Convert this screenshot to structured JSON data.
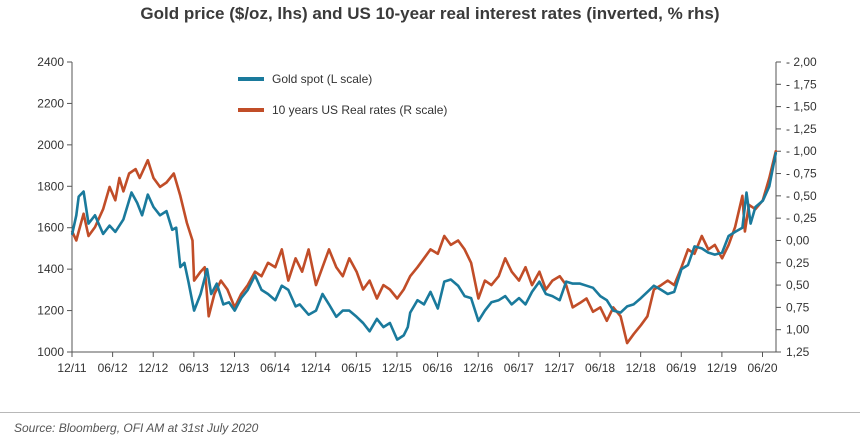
{
  "chart_data": {
    "type": "line",
    "title": "Gold price ($/oz, lhs) and US 10-year real interest rates (inverted, % rhs)",
    "source": "Source: Bloomberg, OFI AM at 31st July 2020",
    "xlabel": "",
    "ylabel_left": "",
    "ylabel_right": "",
    "x_tick_labels": [
      "12/11",
      "06/12",
      "12/12",
      "06/13",
      "12/13",
      "06/14",
      "12/14",
      "06/15",
      "12/15",
      "06/16",
      "12/16",
      "06/17",
      "12/17",
      "06/18",
      "12/18",
      "06/19",
      "12/19",
      "06/20"
    ],
    "x_range": [
      2011.917,
      2020.583
    ],
    "left_axis": {
      "ylim": [
        1000,
        2400
      ],
      "ticks": [
        "1000",
        "1200",
        "1400",
        "1600",
        "1800",
        "2000",
        "2200",
        "2400"
      ]
    },
    "right_axis": {
      "inverted": true,
      "ylim": [
        1.25,
        -2.0
      ],
      "ticks": [
        "- 2,00",
        "- 1,75",
        "- 1,50",
        "- 1,25",
        "- 1,00",
        "- 0,75",
        "- 0,50",
        "- 0,25",
        "0,00",
        "0,25",
        "0,50",
        "0,75",
        "1,00",
        "1,25"
      ]
    },
    "legend_position": "top-center",
    "grid": false,
    "series": [
      {
        "name": "Gold spot (L scale)",
        "axis": "left",
        "color": "#1a7a9c",
        "points": [
          [
            2011.92,
            1570
          ],
          [
            2011.97,
            1660
          ],
          [
            2012.0,
            1750
          ],
          [
            2012.06,
            1775
          ],
          [
            2012.12,
            1620
          ],
          [
            2012.2,
            1660
          ],
          [
            2012.3,
            1570
          ],
          [
            2012.38,
            1610
          ],
          [
            2012.45,
            1580
          ],
          [
            2012.55,
            1640
          ],
          [
            2012.65,
            1770
          ],
          [
            2012.72,
            1720
          ],
          [
            2012.78,
            1660
          ],
          [
            2012.85,
            1760
          ],
          [
            2012.92,
            1700
          ],
          [
            2013.0,
            1660
          ],
          [
            2013.08,
            1680
          ],
          [
            2013.15,
            1590
          ],
          [
            2013.2,
            1600
          ],
          [
            2013.25,
            1410
          ],
          [
            2013.3,
            1430
          ],
          [
            2013.35,
            1340
          ],
          [
            2013.42,
            1200
          ],
          [
            2013.5,
            1280
          ],
          [
            2013.58,
            1400
          ],
          [
            2013.63,
            1280
          ],
          [
            2013.7,
            1330
          ],
          [
            2013.78,
            1230
          ],
          [
            2013.85,
            1240
          ],
          [
            2013.92,
            1200
          ],
          [
            2014.0,
            1260
          ],
          [
            2014.08,
            1300
          ],
          [
            2014.17,
            1370
          ],
          [
            2014.25,
            1300
          ],
          [
            2014.33,
            1280
          ],
          [
            2014.42,
            1250
          ],
          [
            2014.5,
            1320
          ],
          [
            2014.58,
            1300
          ],
          [
            2014.67,
            1220
          ],
          [
            2014.72,
            1230
          ],
          [
            2014.83,
            1180
          ],
          [
            2014.92,
            1200
          ],
          [
            2015.0,
            1280
          ],
          [
            2015.08,
            1230
          ],
          [
            2015.17,
            1170
          ],
          [
            2015.25,
            1200
          ],
          [
            2015.33,
            1200
          ],
          [
            2015.42,
            1170
          ],
          [
            2015.5,
            1140
          ],
          [
            2015.58,
            1100
          ],
          [
            2015.67,
            1160
          ],
          [
            2015.75,
            1120
          ],
          [
            2015.83,
            1140
          ],
          [
            2015.92,
            1060
          ],
          [
            2016.0,
            1080
          ],
          [
            2016.05,
            1120
          ],
          [
            2016.08,
            1190
          ],
          [
            2016.17,
            1250
          ],
          [
            2016.25,
            1230
          ],
          [
            2016.33,
            1290
          ],
          [
            2016.42,
            1210
          ],
          [
            2016.5,
            1340
          ],
          [
            2016.58,
            1350
          ],
          [
            2016.67,
            1320
          ],
          [
            2016.75,
            1270
          ],
          [
            2016.83,
            1260
          ],
          [
            2016.92,
            1150
          ],
          [
            2017.0,
            1200
          ],
          [
            2017.08,
            1240
          ],
          [
            2017.17,
            1250
          ],
          [
            2017.25,
            1270
          ],
          [
            2017.33,
            1230
          ],
          [
            2017.42,
            1260
          ],
          [
            2017.5,
            1230
          ],
          [
            2017.58,
            1290
          ],
          [
            2017.67,
            1340
          ],
          [
            2017.75,
            1280
          ],
          [
            2017.83,
            1270
          ],
          [
            2017.92,
            1250
          ],
          [
            2018.0,
            1340
          ],
          [
            2018.08,
            1330
          ],
          [
            2018.17,
            1330
          ],
          [
            2018.25,
            1320
          ],
          [
            2018.33,
            1310
          ],
          [
            2018.42,
            1270
          ],
          [
            2018.5,
            1250
          ],
          [
            2018.58,
            1200
          ],
          [
            2018.67,
            1190
          ],
          [
            2018.75,
            1220
          ],
          [
            2018.83,
            1230
          ],
          [
            2018.92,
            1260
          ],
          [
            2019.0,
            1290
          ],
          [
            2019.08,
            1320
          ],
          [
            2019.17,
            1300
          ],
          [
            2019.25,
            1280
          ],
          [
            2019.33,
            1290
          ],
          [
            2019.42,
            1400
          ],
          [
            2019.5,
            1420
          ],
          [
            2019.58,
            1510
          ],
          [
            2019.67,
            1500
          ],
          [
            2019.75,
            1480
          ],
          [
            2019.83,
            1470
          ],
          [
            2019.92,
            1480
          ],
          [
            2020.0,
            1560
          ],
          [
            2020.08,
            1580
          ],
          [
            2020.17,
            1600
          ],
          [
            2020.22,
            1770
          ],
          [
            2020.27,
            1620
          ],
          [
            2020.33,
            1700
          ],
          [
            2020.42,
            1730
          ],
          [
            2020.5,
            1800
          ],
          [
            2020.58,
            1960
          ]
        ]
      },
      {
        "name": "10 years US Real rates (R scale)",
        "axis": "right",
        "color": "#c14d28",
        "points": [
          [
            2011.92,
            -0.1
          ],
          [
            2011.97,
            0.0
          ],
          [
            2012.0,
            -0.1
          ],
          [
            2012.06,
            -0.3
          ],
          [
            2012.12,
            -0.05
          ],
          [
            2012.2,
            -0.15
          ],
          [
            2012.3,
            -0.35
          ],
          [
            2012.38,
            -0.6
          ],
          [
            2012.45,
            -0.45
          ],
          [
            2012.5,
            -0.7
          ],
          [
            2012.55,
            -0.55
          ],
          [
            2012.62,
            -0.75
          ],
          [
            2012.7,
            -0.8
          ],
          [
            2012.75,
            -0.7
          ],
          [
            2012.85,
            -0.9
          ],
          [
            2012.92,
            -0.7
          ],
          [
            2013.0,
            -0.6
          ],
          [
            2013.08,
            -0.65
          ],
          [
            2013.17,
            -0.75
          ],
          [
            2013.25,
            -0.5
          ],
          [
            2013.33,
            -0.2
          ],
          [
            2013.4,
            0.0
          ],
          [
            2013.42,
            0.45
          ],
          [
            2013.5,
            0.35
          ],
          [
            2013.55,
            0.3
          ],
          [
            2013.6,
            0.85
          ],
          [
            2013.67,
            0.6
          ],
          [
            2013.75,
            0.45
          ],
          [
            2013.83,
            0.55
          ],
          [
            2013.92,
            0.75
          ],
          [
            2014.0,
            0.6
          ],
          [
            2014.08,
            0.5
          ],
          [
            2014.17,
            0.35
          ],
          [
            2014.25,
            0.4
          ],
          [
            2014.33,
            0.25
          ],
          [
            2014.42,
            0.3
          ],
          [
            2014.5,
            0.1
          ],
          [
            2014.58,
            0.45
          ],
          [
            2014.67,
            0.2
          ],
          [
            2014.75,
            0.35
          ],
          [
            2014.83,
            0.1
          ],
          [
            2014.92,
            0.5
          ],
          [
            2015.0,
            0.3
          ],
          [
            2015.08,
            0.1
          ],
          [
            2015.17,
            0.3
          ],
          [
            2015.25,
            0.4
          ],
          [
            2015.33,
            0.2
          ],
          [
            2015.42,
            0.35
          ],
          [
            2015.5,
            0.55
          ],
          [
            2015.58,
            0.45
          ],
          [
            2015.67,
            0.65
          ],
          [
            2015.75,
            0.5
          ],
          [
            2015.83,
            0.55
          ],
          [
            2015.92,
            0.65
          ],
          [
            2016.0,
            0.55
          ],
          [
            2016.08,
            0.4
          ],
          [
            2016.17,
            0.3
          ],
          [
            2016.25,
            0.2
          ],
          [
            2016.33,
            0.1
          ],
          [
            2016.42,
            0.15
          ],
          [
            2016.5,
            -0.05
          ],
          [
            2016.58,
            0.05
          ],
          [
            2016.67,
            0.0
          ],
          [
            2016.75,
            0.1
          ],
          [
            2016.83,
            0.25
          ],
          [
            2016.92,
            0.65
          ],
          [
            2017.0,
            0.45
          ],
          [
            2017.08,
            0.5
          ],
          [
            2017.17,
            0.4
          ],
          [
            2017.25,
            0.2
          ],
          [
            2017.33,
            0.35
          ],
          [
            2017.42,
            0.45
          ],
          [
            2017.5,
            0.3
          ],
          [
            2017.58,
            0.5
          ],
          [
            2017.67,
            0.35
          ],
          [
            2017.75,
            0.55
          ],
          [
            2017.83,
            0.45
          ],
          [
            2017.92,
            0.4
          ],
          [
            2018.0,
            0.5
          ],
          [
            2018.08,
            0.75
          ],
          [
            2018.17,
            0.7
          ],
          [
            2018.25,
            0.65
          ],
          [
            2018.33,
            0.8
          ],
          [
            2018.42,
            0.75
          ],
          [
            2018.5,
            0.9
          ],
          [
            2018.58,
            0.75
          ],
          [
            2018.67,
            0.85
          ],
          [
            2018.75,
            1.15
          ],
          [
            2018.83,
            1.05
          ],
          [
            2018.92,
            0.95
          ],
          [
            2019.0,
            0.85
          ],
          [
            2019.08,
            0.55
          ],
          [
            2019.17,
            0.5
          ],
          [
            2019.25,
            0.45
          ],
          [
            2019.33,
            0.5
          ],
          [
            2019.42,
            0.3
          ],
          [
            2019.5,
            0.1
          ],
          [
            2019.58,
            0.15
          ],
          [
            2019.67,
            -0.05
          ],
          [
            2019.75,
            0.1
          ],
          [
            2019.83,
            0.05
          ],
          [
            2019.92,
            0.2
          ],
          [
            2020.0,
            0.05
          ],
          [
            2020.08,
            -0.15
          ],
          [
            2020.17,
            -0.5
          ],
          [
            2020.2,
            -0.1
          ],
          [
            2020.25,
            -0.4
          ],
          [
            2020.33,
            -0.35
          ],
          [
            2020.42,
            -0.45
          ],
          [
            2020.5,
            -0.7
          ],
          [
            2020.58,
            -1.0
          ]
        ]
      }
    ]
  }
}
